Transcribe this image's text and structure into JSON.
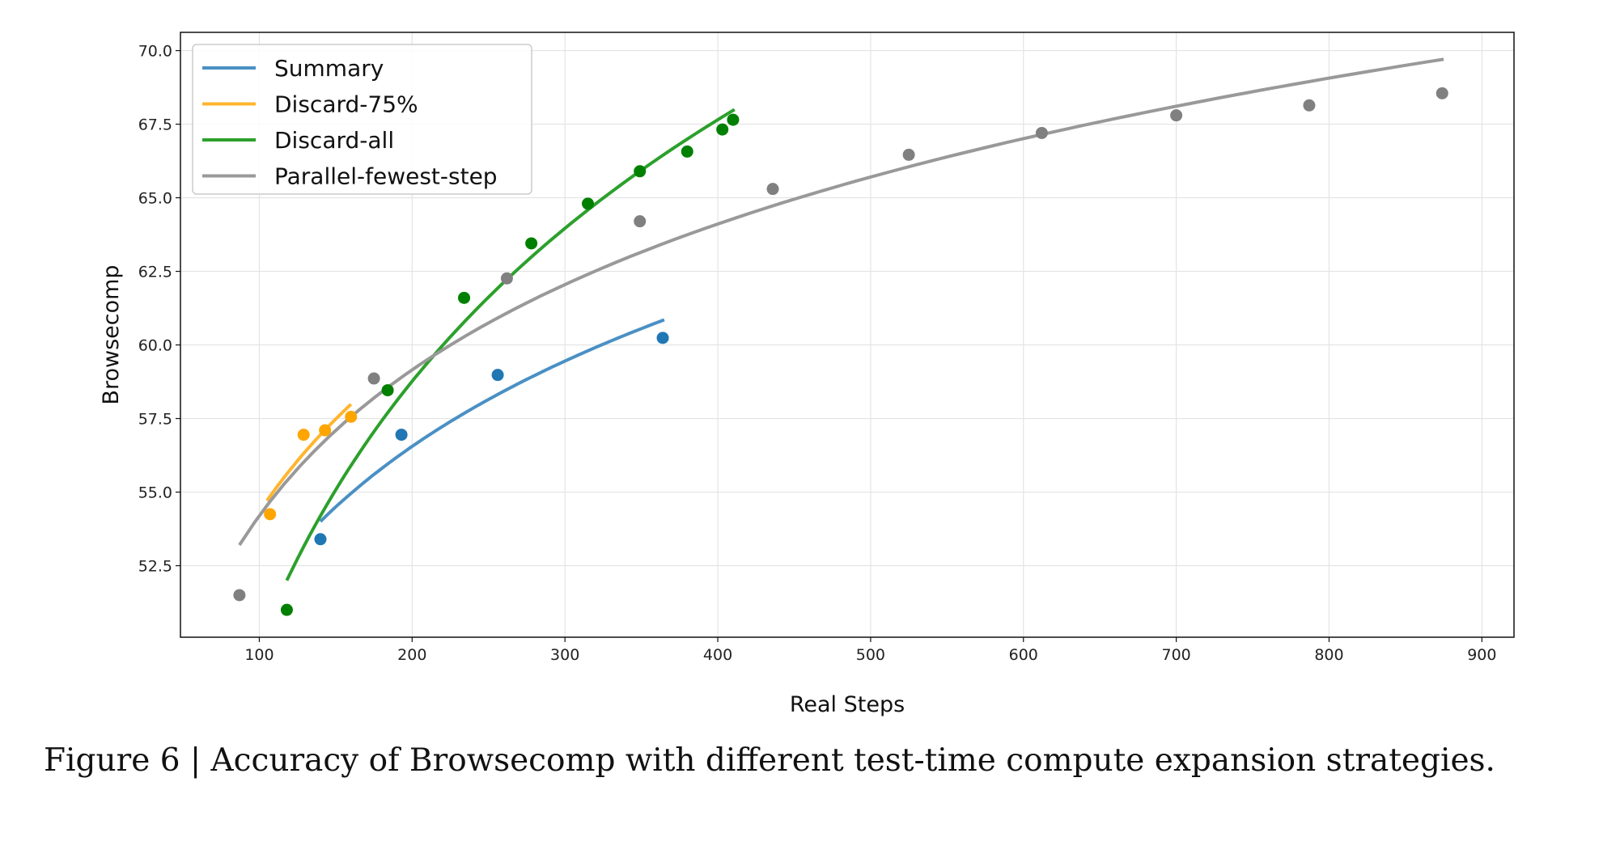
{
  "chart_data": {
    "type": "scatter",
    "xlabel": "Real Steps",
    "ylabel": "Browsecomp",
    "xlim": [
      48.4,
      921
    ],
    "ylim": [
      50.07,
      70.62
    ],
    "xticks": [
      "100",
      "200",
      "300",
      "400",
      "500",
      "600",
      "700",
      "800",
      "900"
    ],
    "yticks": [
      "52.5",
      "55.0",
      "57.5",
      "60.0",
      "62.5",
      "65.0",
      "67.5",
      "70.0"
    ],
    "grid": true,
    "legend_position": "top-left",
    "series": [
      {
        "name": "Summary",
        "line_color": "#4a90c4",
        "point_color": "#1f77b4",
        "x": [
          140,
          193,
          256,
          364
        ],
        "y": [
          53.4,
          56.95,
          58.98,
          60.24
        ],
        "fit": {
          "model": "log",
          "a": 18.67,
          "b": 7.15,
          "x_range": [
            140,
            365
          ]
        }
      },
      {
        "name": "Discard-75%",
        "line_color": "#ffb52e",
        "point_color": "#ffa500",
        "x": [
          107,
          129,
          143,
          160
        ],
        "y": [
          54.25,
          56.95,
          57.1,
          57.56
        ],
        "fit": {
          "model": "log",
          "a": 18.55,
          "b": 7.77,
          "x_range": [
            105,
            160
          ]
        }
      },
      {
        "name": "Discard-all",
        "line_color": "#2ca02c",
        "point_color": "#008000",
        "x": [
          118,
          184,
          234,
          278,
          315,
          349,
          380,
          403,
          410
        ],
        "y": [
          51.0,
          58.46,
          61.6,
          63.45,
          64.8,
          65.9,
          66.57,
          67.32,
          67.65
        ],
        "fit": {
          "model": "log",
          "a": -9.16,
          "b": 12.82,
          "x_range": [
            118,
            411
          ]
        }
      },
      {
        "name": "Parallel-fewest-step",
        "line_color": "#999999",
        "point_color": "#808080",
        "x": [
          87,
          175,
          262,
          349,
          436,
          525,
          612,
          700,
          787,
          874
        ],
        "y": [
          51.5,
          58.86,
          62.26,
          64.2,
          65.3,
          66.46,
          67.2,
          67.8,
          68.14,
          68.55
        ],
        "fit": {
          "model": "log",
          "a": 21.27,
          "b": 7.15,
          "x_range": [
            87,
            875
          ]
        }
      }
    ]
  },
  "caption": "Figure 6 | Accuracy of Browsecomp with different test-time compute expansion strategies."
}
